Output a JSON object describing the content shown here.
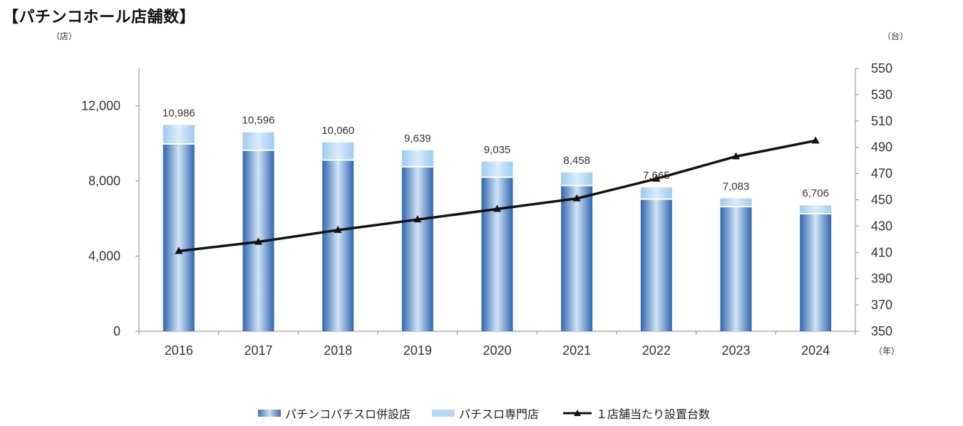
{
  "title": "【パチンコホール店舗数】",
  "chart_data": {
    "type": "bar",
    "categories": [
      "2016",
      "2017",
      "2018",
      "2019",
      "2020",
      "2021",
      "2022",
      "2023",
      "2024"
    ],
    "series": [
      {
        "name": "パチンコパチスロ併設店",
        "kind": "stacked-bar",
        "values": [
          9980,
          9640,
          9120,
          8760,
          8210,
          7760,
          7040,
          6640,
          6260
        ]
      },
      {
        "name": "パチスロ専門店",
        "kind": "stacked-bar",
        "values": [
          1006,
          956,
          940,
          879,
          825,
          698,
          625,
          443,
          446
        ]
      },
      {
        "name": "１店舗当たり設置台数",
        "kind": "line",
        "axis": "right",
        "values": [
          411,
          418,
          427,
          435,
          443,
          451,
          466,
          483,
          495
        ]
      }
    ],
    "totals": [
      10986,
      10596,
      10060,
      9639,
      9035,
      8458,
      7665,
      7083,
      6706
    ],
    "total_labels": [
      "10,986",
      "10,596",
      "10,060",
      "9,639",
      "9,035",
      "8,458",
      "7,665",
      "7,083",
      "6,706"
    ],
    "left_axis": {
      "unit": "（店）",
      "ylim": [
        0,
        14000
      ],
      "ticks": [
        0,
        4000,
        8000,
        12000
      ],
      "tick_labels": [
        "0",
        "4,000",
        "8,000",
        "12,000"
      ]
    },
    "right_axis": {
      "unit": "（台）",
      "ylim": [
        350,
        550
      ],
      "ticks": [
        350,
        370,
        390,
        410,
        430,
        450,
        470,
        490,
        510,
        530,
        550
      ],
      "tick_labels": [
        "350",
        "370",
        "390",
        "410",
        "430",
        "450",
        "470",
        "490",
        "510",
        "530",
        "550"
      ]
    },
    "x_unit": "（年）",
    "legend_position": "bottom",
    "grid": false,
    "colors": {
      "combined": "#3a72b8",
      "slot_only": "#b6d8f5",
      "line": "#111111"
    }
  }
}
